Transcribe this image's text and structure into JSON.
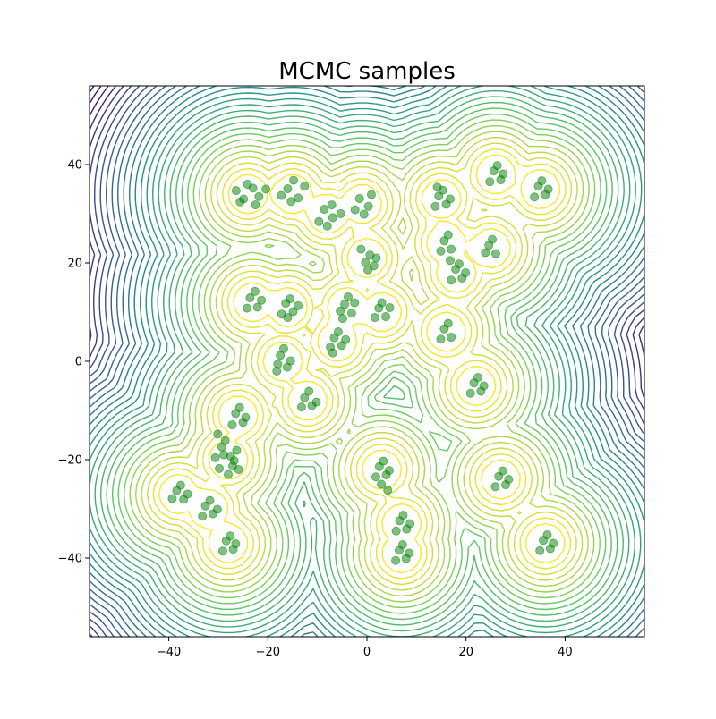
{
  "chart_data": {
    "type": "scatter",
    "title": "MCMC samples",
    "xlabel": "",
    "ylabel": "",
    "xlim": [
      -56,
      56
    ],
    "ylim": [
      -56,
      56
    ],
    "xticks": [
      -40,
      -20,
      0,
      20,
      40
    ],
    "yticks": [
      -40,
      -20,
      0,
      20,
      40
    ],
    "xtick_labels": [
      "−40",
      "−20",
      "0",
      "20",
      "40"
    ],
    "ytick_labels": [
      "−40",
      "−20",
      "0",
      "20",
      "40"
    ],
    "grid": false,
    "background": "contour",
    "contour_colormap": "viridis",
    "contour_colors": [
      "#440154",
      "#3b528b",
      "#21918c",
      "#5ec962",
      "#fde725"
    ],
    "sample_color": "#008000",
    "cluster_centers": [
      {
        "x": -24,
        "y": 34
      },
      {
        "x": -15,
        "y": 34
      },
      {
        "x": -8,
        "y": 30
      },
      {
        "x": -1,
        "y": 32
      },
      {
        "x": 0,
        "y": 21
      },
      {
        "x": -23,
        "y": 12
      },
      {
        "x": -16,
        "y": 11
      },
      {
        "x": -4,
        "y": 11
      },
      {
        "x": 3,
        "y": 10
      },
      {
        "x": -6,
        "y": 4
      },
      {
        "x": -17,
        "y": 0
      },
      {
        "x": -12,
        "y": -8
      },
      {
        "x": -26,
        "y": -11
      },
      {
        "x": -28,
        "y": -20
      },
      {
        "x": -38,
        "y": -27
      },
      {
        "x": -32,
        "y": -30
      },
      {
        "x": -28,
        "y": -37
      },
      {
        "x": 3,
        "y": -22
      },
      {
        "x": 7,
        "y": -33
      },
      {
        "x": 7,
        "y": -39
      },
      {
        "x": 15,
        "y": 33
      },
      {
        "x": 26,
        "y": 38
      },
      {
        "x": 35,
        "y": 35
      },
      {
        "x": 16,
        "y": 24
      },
      {
        "x": 18,
        "y": 18
      },
      {
        "x": 25,
        "y": 23
      },
      {
        "x": 16,
        "y": 6
      },
      {
        "x": 22,
        "y": -5
      },
      {
        "x": 27,
        "y": -24
      },
      {
        "x": 36,
        "y": -37
      }
    ],
    "points": [
      {
        "x": -24.1,
        "y": 36.0
      },
      {
        "x": -25.6,
        "y": 32.4
      },
      {
        "x": -21.8,
        "y": 33.5
      },
      {
        "x": -23.0,
        "y": 35.2
      },
      {
        "x": -26.4,
        "y": 34.7
      },
      {
        "x": -22.5,
        "y": 31.8
      },
      {
        "x": -24.9,
        "y": 33.0
      },
      {
        "x": -20.4,
        "y": 35.0
      },
      {
        "x": -16.0,
        "y": 35.1
      },
      {
        "x": -13.9,
        "y": 33.2
      },
      {
        "x": -15.3,
        "y": 32.5
      },
      {
        "x": -12.6,
        "y": 35.6
      },
      {
        "x": -14.8,
        "y": 36.8
      },
      {
        "x": -17.3,
        "y": 33.7
      },
      {
        "x": -8.6,
        "y": 30.9
      },
      {
        "x": -6.9,
        "y": 29.2
      },
      {
        "x": -9.7,
        "y": 28.4
      },
      {
        "x": -7.1,
        "y": 31.8
      },
      {
        "x": -5.3,
        "y": 30.0
      },
      {
        "x": -8.0,
        "y": 27.5
      },
      {
        "x": -1.5,
        "y": 33.1
      },
      {
        "x": 0.3,
        "y": 31.5
      },
      {
        "x": -2.4,
        "y": 30.8
      },
      {
        "x": 0.9,
        "y": 33.9
      },
      {
        "x": -0.6,
        "y": 29.9
      },
      {
        "x": 0.6,
        "y": 21.6
      },
      {
        "x": -1.2,
        "y": 22.8
      },
      {
        "x": 1.4,
        "y": 19.4
      },
      {
        "x": -0.3,
        "y": 20.1
      },
      {
        "x": 1.9,
        "y": 21.0
      },
      {
        "x": 0.2,
        "y": 18.6
      },
      {
        "x": -23.6,
        "y": 12.9
      },
      {
        "x": -22.1,
        "y": 11.0
      },
      {
        "x": -24.2,
        "y": 10.8
      },
      {
        "x": -22.6,
        "y": 14.2
      },
      {
        "x": -21.3,
        "y": 12.4
      },
      {
        "x": -16.4,
        "y": 11.8
      },
      {
        "x": -14.9,
        "y": 10.1
      },
      {
        "x": -17.2,
        "y": 9.6
      },
      {
        "x": -15.5,
        "y": 12.7
      },
      {
        "x": -13.9,
        "y": 11.3
      },
      {
        "x": -16.0,
        "y": 8.9
      },
      {
        "x": -4.5,
        "y": 11.6
      },
      {
        "x": -3.1,
        "y": 9.8
      },
      {
        "x": -5.4,
        "y": 10.2
      },
      {
        "x": -3.8,
        "y": 13.1
      },
      {
        "x": -2.5,
        "y": 11.9
      },
      {
        "x": -4.9,
        "y": 8.7
      },
      {
        "x": 2.4,
        "y": 10.8
      },
      {
        "x": 3.8,
        "y": 9.1
      },
      {
        "x": 1.6,
        "y": 8.9
      },
      {
        "x": 4.6,
        "y": 10.9
      },
      {
        "x": 3.0,
        "y": 11.9
      },
      {
        "x": -6.6,
        "y": 4.8
      },
      {
        "x": -5.1,
        "y": 3.2
      },
      {
        "x": -7.4,
        "y": 2.9
      },
      {
        "x": -5.8,
        "y": 6.0
      },
      {
        "x": -4.3,
        "y": 4.4
      },
      {
        "x": -6.9,
        "y": 1.7
      },
      {
        "x": -17.5,
        "y": 1.2
      },
      {
        "x": -16.1,
        "y": -1.2
      },
      {
        "x": -18.2,
        "y": -2.0
      },
      {
        "x": -16.8,
        "y": 2.6
      },
      {
        "x": -15.4,
        "y": 0.1
      },
      {
        "x": -18.0,
        "y": -0.6
      },
      {
        "x": -12.6,
        "y": -7.4
      },
      {
        "x": -11.1,
        "y": -9.0
      },
      {
        "x": -13.2,
        "y": -9.3
      },
      {
        "x": -11.7,
        "y": -6.1
      },
      {
        "x": -10.2,
        "y": -8.3
      },
      {
        "x": -26.5,
        "y": -10.6
      },
      {
        "x": -25.0,
        "y": -12.4
      },
      {
        "x": -27.2,
        "y": -12.9
      },
      {
        "x": -25.7,
        "y": -9.4
      },
      {
        "x": -24.5,
        "y": -11.4
      },
      {
        "x": -28.9,
        "y": -19.0
      },
      {
        "x": -27.1,
        "y": -21.3
      },
      {
        "x": -29.8,
        "y": -21.8
      },
      {
        "x": -26.3,
        "y": -18.1
      },
      {
        "x": -28.0,
        "y": -23.0
      },
      {
        "x": -30.6,
        "y": -19.6
      },
      {
        "x": -26.8,
        "y": -20.2
      },
      {
        "x": -29.3,
        "y": -17.4
      },
      {
        "x": -27.5,
        "y": -19.3
      },
      {
        "x": -25.9,
        "y": -22.0
      },
      {
        "x": -30.1,
        "y": -14.8
      },
      {
        "x": -28.6,
        "y": -16.1
      },
      {
        "x": -38.4,
        "y": -26.3
      },
      {
        "x": -37.0,
        "y": -28.1
      },
      {
        "x": -39.3,
        "y": -27.9
      },
      {
        "x": -37.6,
        "y": -25.2
      },
      {
        "x": -36.2,
        "y": -27.0
      },
      {
        "x": -32.6,
        "y": -29.4
      },
      {
        "x": -31.1,
        "y": -31.0
      },
      {
        "x": -33.2,
        "y": -31.5
      },
      {
        "x": -31.7,
        "y": -28.3
      },
      {
        "x": -30.2,
        "y": -30.1
      },
      {
        "x": -28.4,
        "y": -36.5
      },
      {
        "x": -27.0,
        "y": -38.2
      },
      {
        "x": -29.1,
        "y": -38.6
      },
      {
        "x": -27.6,
        "y": -35.5
      },
      {
        "x": -26.5,
        "y": -37.1
      },
      {
        "x": 2.5,
        "y": -21.4
      },
      {
        "x": 3.9,
        "y": -23.1
      },
      {
        "x": 1.8,
        "y": -23.5
      },
      {
        "x": 3.3,
        "y": -20.3
      },
      {
        "x": 4.5,
        "y": -22.2
      },
      {
        "x": 2.9,
        "y": -25.0
      },
      {
        "x": 4.2,
        "y": -26.2
      },
      {
        "x": 6.6,
        "y": -32.4
      },
      {
        "x": 8.0,
        "y": -34.1
      },
      {
        "x": 5.9,
        "y": -34.5
      },
      {
        "x": 7.3,
        "y": -31.3
      },
      {
        "x": 8.7,
        "y": -33.0
      },
      {
        "x": 6.5,
        "y": -38.4
      },
      {
        "x": 7.9,
        "y": -40.1
      },
      {
        "x": 5.8,
        "y": -40.5
      },
      {
        "x": 7.2,
        "y": -37.3
      },
      {
        "x": 8.5,
        "y": -39.0
      },
      {
        "x": 14.5,
        "y": 33.6
      },
      {
        "x": 16.0,
        "y": 31.9
      },
      {
        "x": 13.8,
        "y": 31.5
      },
      {
        "x": 15.3,
        "y": 34.8
      },
      {
        "x": 16.8,
        "y": 33.0
      },
      {
        "x": 14.2,
        "y": 35.4
      },
      {
        "x": 25.6,
        "y": 38.7
      },
      {
        "x": 27.0,
        "y": 36.9
      },
      {
        "x": 24.8,
        "y": 36.5
      },
      {
        "x": 26.3,
        "y": 39.8
      },
      {
        "x": 27.5,
        "y": 38.1
      },
      {
        "x": 34.6,
        "y": 35.6
      },
      {
        "x": 36.0,
        "y": 33.9
      },
      {
        "x": 33.8,
        "y": 33.4
      },
      {
        "x": 35.3,
        "y": 36.7
      },
      {
        "x": 36.6,
        "y": 35.0
      },
      {
        "x": 15.6,
        "y": 24.5
      },
      {
        "x": 17.0,
        "y": 22.8
      },
      {
        "x": 14.9,
        "y": 22.4
      },
      {
        "x": 16.4,
        "y": 25.7
      },
      {
        "x": 17.9,
        "y": 18.7
      },
      {
        "x": 19.2,
        "y": 16.9
      },
      {
        "x": 17.0,
        "y": 16.5
      },
      {
        "x": 18.6,
        "y": 19.8
      },
      {
        "x": 19.9,
        "y": 18.0
      },
      {
        "x": 16.8,
        "y": 20.5
      },
      {
        "x": 24.6,
        "y": 23.6
      },
      {
        "x": 26.0,
        "y": 21.9
      },
      {
        "x": 23.9,
        "y": 22.1
      },
      {
        "x": 25.3,
        "y": 24.8
      },
      {
        "x": 15.6,
        "y": 6.6
      },
      {
        "x": 17.0,
        "y": 4.9
      },
      {
        "x": 14.9,
        "y": 4.5
      },
      {
        "x": 16.4,
        "y": 7.7
      },
      {
        "x": 21.6,
        "y": -4.4
      },
      {
        "x": 23.0,
        "y": -6.1
      },
      {
        "x": 20.9,
        "y": -6.5
      },
      {
        "x": 22.4,
        "y": -3.3
      },
      {
        "x": 23.6,
        "y": -5.0
      },
      {
        "x": 26.6,
        "y": -23.4
      },
      {
        "x": 28.0,
        "y": -25.1
      },
      {
        "x": 25.9,
        "y": -25.5
      },
      {
        "x": 27.4,
        "y": -22.3
      },
      {
        "x": 28.6,
        "y": -24.0
      },
      {
        "x": 35.6,
        "y": -36.4
      },
      {
        "x": 37.0,
        "y": -38.1
      },
      {
        "x": 34.9,
        "y": -38.5
      },
      {
        "x": 36.4,
        "y": -35.3
      },
      {
        "x": 37.6,
        "y": -37.0
      }
    ]
  }
}
